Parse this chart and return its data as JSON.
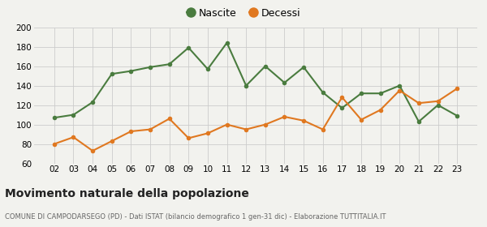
{
  "years": [
    "02",
    "03",
    "04",
    "05",
    "06",
    "07",
    "08",
    "09",
    "10",
    "11",
    "12",
    "13",
    "14",
    "15",
    "16",
    "17",
    "18",
    "19",
    "20",
    "21",
    "22",
    "23"
  ],
  "nascite": [
    107,
    110,
    123,
    152,
    155,
    159,
    162,
    179,
    157,
    184,
    140,
    160,
    143,
    159,
    133,
    117,
    132,
    132,
    140,
    103,
    120,
    109
  ],
  "decessi": [
    80,
    87,
    73,
    83,
    93,
    95,
    106,
    86,
    91,
    100,
    95,
    100,
    108,
    104,
    95,
    128,
    105,
    115,
    135,
    122,
    124,
    137
  ],
  "nascite_color": "#4a7c3f",
  "decessi_color": "#e07820",
  "bg_color": "#f2f2ee",
  "grid_color": "#cccccc",
  "ylim": [
    60,
    200
  ],
  "yticks": [
    60,
    80,
    100,
    120,
    140,
    160,
    180,
    200
  ],
  "title": "Movimento naturale della popolazione",
  "subtitle": "COMUNE DI CAMPODARSEGO (PD) - Dati ISTAT (bilancio demografico 1 gen-31 dic) - Elaborazione TUTTITALIA.IT",
  "legend_nascite": "Nascite",
  "legend_decessi": "Decessi",
  "marker_size": 4,
  "line_width": 1.5
}
